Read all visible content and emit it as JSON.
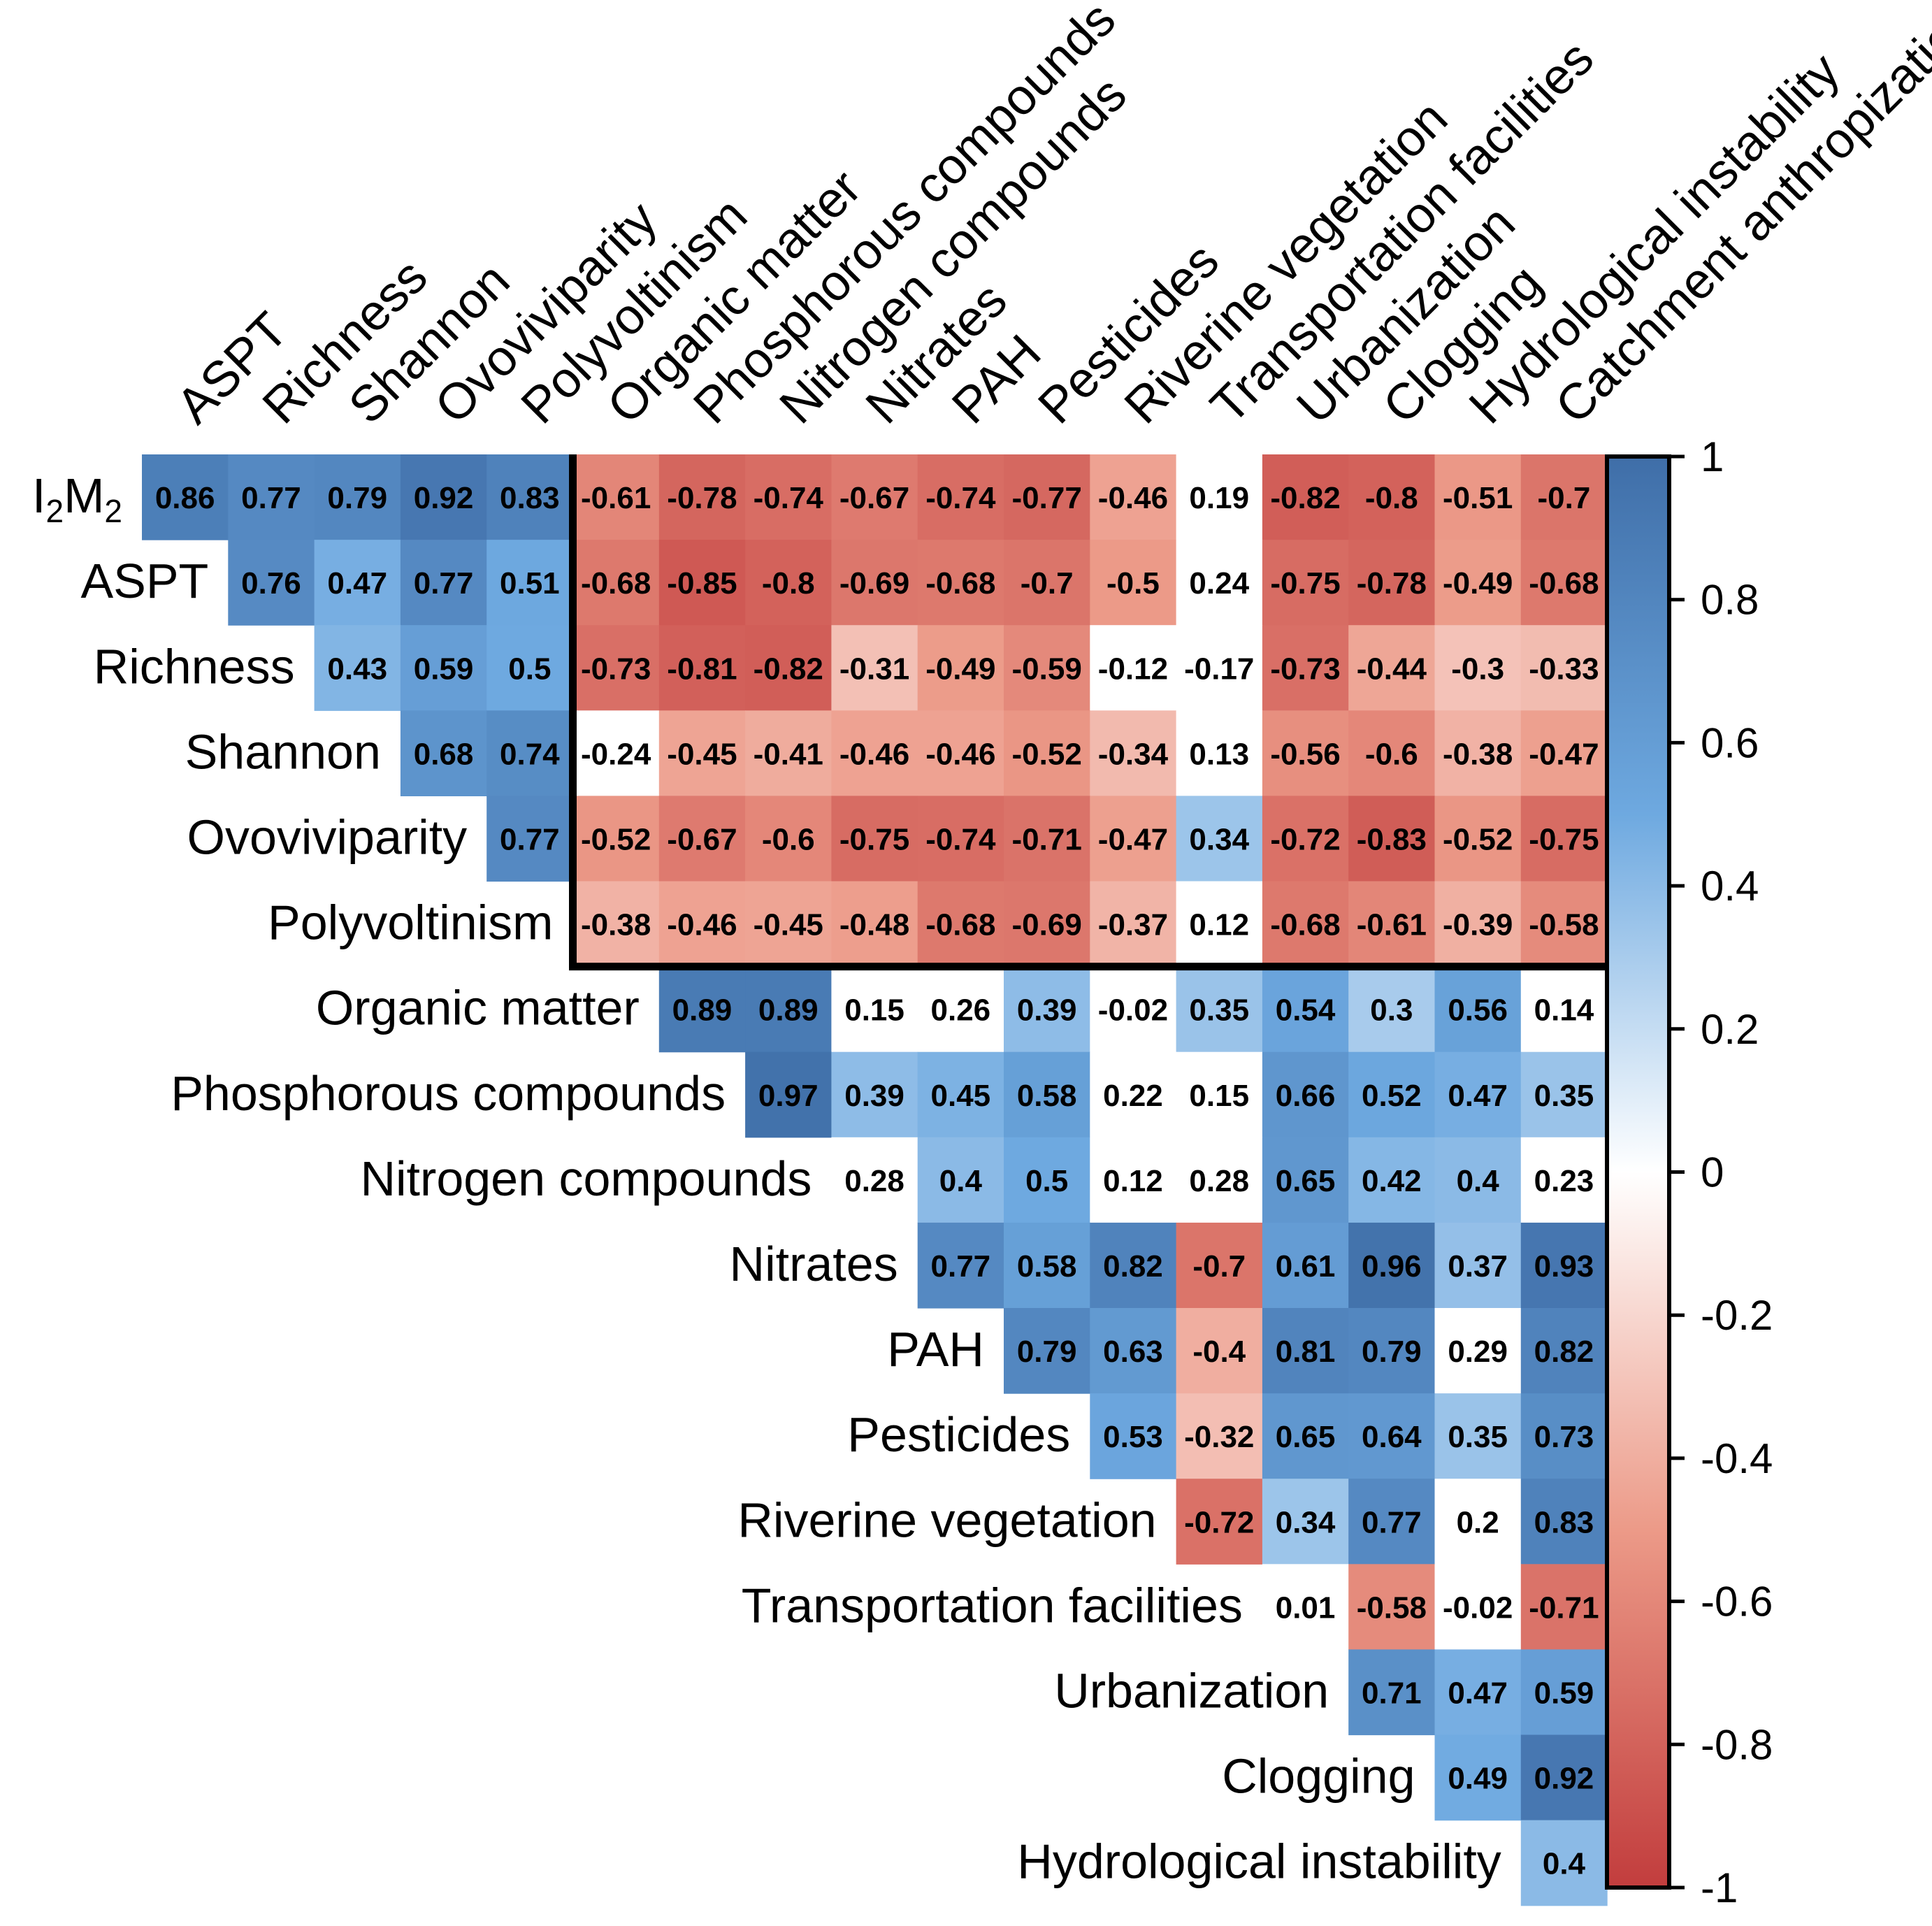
{
  "chart_data": {
    "type": "heatmap",
    "title": "",
    "row_labels": [
      "I2M2",
      "ASPT",
      "Richness",
      "Shannon",
      "Ovoviviparity",
      "Polyvoltinism",
      "Organic matter",
      "Phosphorous compounds",
      "Nitrogen compounds",
      "Nitrates",
      "PAH",
      "Pesticides",
      "Riverine vegetation",
      "Transportation facilities",
      "Urbanization",
      "Clogging",
      "Hydrological instability"
    ],
    "row_label_first": {
      "main1": "I",
      "sub1": "2",
      "main2": "M",
      "sub2": "2"
    },
    "column_labels": [
      "ASPT",
      "Richness",
      "Shannon",
      "Ovoviviparity",
      "Polyvoltinism",
      "Organic matter",
      "Phosphorous compounds",
      "Nitrogen compounds",
      "Nitrates",
      "PAH",
      "Pesticides",
      "Riverine vegetation",
      "Transportation facilities",
      "Urbanization",
      "Clogging",
      "Hydrological instability",
      "Catchment anthropization"
    ],
    "values": [
      [
        0.86,
        0.77,
        0.79,
        0.92,
        0.83,
        -0.61,
        -0.78,
        -0.74,
        -0.67,
        -0.74,
        -0.77,
        -0.46,
        0.19,
        -0.82,
        -0.8,
        -0.51,
        -0.7
      ],
      [
        null,
        0.76,
        0.47,
        0.77,
        0.51,
        -0.68,
        -0.85,
        -0.8,
        -0.69,
        -0.68,
        -0.7,
        -0.5,
        0.24,
        -0.75,
        -0.78,
        -0.49,
        -0.68
      ],
      [
        null,
        null,
        0.43,
        0.59,
        0.5,
        -0.73,
        -0.81,
        -0.82,
        -0.31,
        -0.49,
        -0.59,
        -0.12,
        -0.17,
        -0.73,
        -0.44,
        -0.3,
        -0.33
      ],
      [
        null,
        null,
        null,
        0.68,
        0.74,
        -0.24,
        -0.45,
        -0.41,
        -0.46,
        -0.46,
        -0.52,
        -0.34,
        0.13,
        -0.56,
        -0.6,
        -0.38,
        -0.47
      ],
      [
        null,
        null,
        null,
        null,
        0.77,
        -0.52,
        -0.67,
        -0.6,
        -0.75,
        -0.74,
        -0.71,
        -0.47,
        0.34,
        -0.72,
        -0.83,
        -0.52,
        -0.75
      ],
      [
        null,
        null,
        null,
        null,
        null,
        -0.38,
        -0.46,
        -0.45,
        -0.48,
        -0.68,
        -0.69,
        -0.37,
        0.12,
        -0.68,
        -0.61,
        -0.39,
        -0.58
      ],
      [
        null,
        null,
        null,
        null,
        null,
        null,
        0.89,
        0.89,
        0.15,
        0.26,
        0.39,
        -0.02,
        0.35,
        0.54,
        0.3,
        0.56,
        0.14
      ],
      [
        null,
        null,
        null,
        null,
        null,
        null,
        null,
        0.97,
        0.39,
        0.45,
        0.58,
        0.22,
        0.15,
        0.66,
        0.52,
        0.47,
        0.35
      ],
      [
        null,
        null,
        null,
        null,
        null,
        null,
        null,
        null,
        0.28,
        0.4,
        0.5,
        0.12,
        0.28,
        0.65,
        0.42,
        0.4,
        0.23
      ],
      [
        null,
        null,
        null,
        null,
        null,
        null,
        null,
        null,
        null,
        0.77,
        0.58,
        0.82,
        -0.7,
        0.61,
        0.96,
        0.37,
        0.93
      ],
      [
        null,
        null,
        null,
        null,
        null,
        null,
        null,
        null,
        null,
        null,
        0.79,
        0.63,
        -0.4,
        0.81,
        0.79,
        0.29,
        0.82
      ],
      [
        null,
        null,
        null,
        null,
        null,
        null,
        null,
        null,
        null,
        null,
        null,
        0.53,
        -0.32,
        0.65,
        0.64,
        0.35,
        0.73
      ],
      [
        null,
        null,
        null,
        null,
        null,
        null,
        null,
        null,
        null,
        null,
        null,
        null,
        -0.72,
        0.34,
        0.77,
        0.2,
        0.83
      ],
      [
        null,
        null,
        null,
        null,
        null,
        null,
        null,
        null,
        null,
        null,
        null,
        null,
        null,
        0.01,
        -0.58,
        -0.02,
        -0.71
      ],
      [
        null,
        null,
        null,
        null,
        null,
        null,
        null,
        null,
        null,
        null,
        null,
        null,
        null,
        null,
        0.71,
        0.47,
        0.59
      ],
      [
        null,
        null,
        null,
        null,
        null,
        null,
        null,
        null,
        null,
        null,
        null,
        null,
        null,
        null,
        null,
        0.49,
        0.92
      ],
      [
        null,
        null,
        null,
        null,
        null,
        null,
        null,
        null,
        null,
        null,
        null,
        null,
        null,
        null,
        null,
        null,
        0.4
      ]
    ],
    "blank_threshold": 0.3,
    "highlight_block": {
      "rows": [
        0,
        5
      ],
      "cols": [
        5,
        16
      ]
    },
    "colorbar": {
      "range": [
        -1,
        1
      ],
      "ticks": [
        1,
        0.8,
        0.6,
        0.4,
        0.2,
        0,
        -0.2,
        -0.4,
        -0.6,
        -0.8,
        -1
      ],
      "tick_labels": [
        "1",
        "0.8",
        "0.6",
        "0.4",
        "0.2",
        "0",
        "-0.2",
        "-0.4",
        "-0.6",
        "-0.8",
        "-1"
      ]
    },
    "colors": {
      "positive_max": "#3f6ea8",
      "positive_mid": "#6ea9e0",
      "neutral": "#ffffff",
      "negative_mid": "#ec9a88",
      "negative_max": "#c23d3d",
      "block_border": "#000000",
      "colorbar_border": "#000000"
    }
  }
}
